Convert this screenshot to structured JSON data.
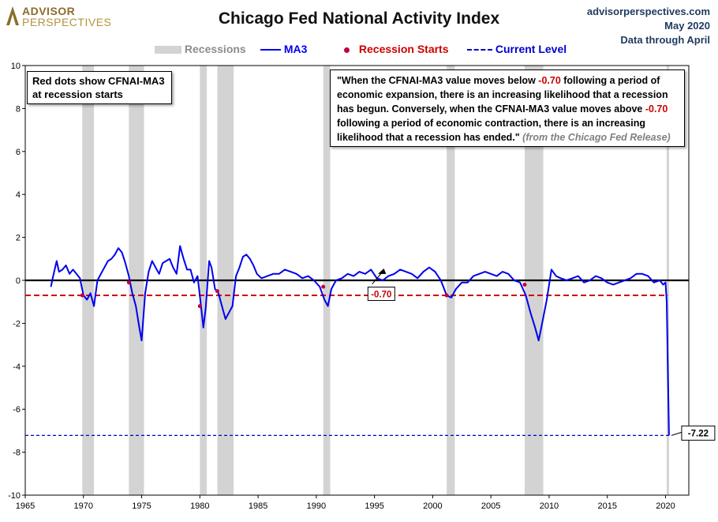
{
  "header": {
    "logo_line1": "ADVISOR",
    "logo_line2": "PERSPECTIVES",
    "title": "Chicago Fed National Activity Index",
    "source_site": "advisorperspectives.com",
    "source_date": "May 2020",
    "source_through": "Data through April"
  },
  "legend": {
    "recessions": "Recessions",
    "ma3": "MA3",
    "recession_starts": "Recession Starts",
    "current_level": "Current Level"
  },
  "notes": {
    "left_box": "Red dots show CFNAI-MA3 at recession starts",
    "quote_part1": "\"When the CFNAI-MA3 value moves below ",
    "quote_threshold1": "-0.70",
    "quote_part2": " following a period of economic expansion, there is an increasing likelihood that a recession has begun. Conversely, when the CFNAI-MA3 value moves above ",
    "quote_threshold2": "-0.70",
    "quote_part3": " following a period of economic contraction, there is an increasing likelihood that a recession has ended.\" ",
    "quote_cite": "(from the Chicago Fed Release)"
  },
  "colors": {
    "ma3": "#0000ee",
    "recession_band": "#d3d3d3",
    "threshold": "#cc0000",
    "current_level": "#0000cc",
    "zero_line": "#000000"
  },
  "chart_data": {
    "type": "line",
    "title": "Chicago Fed National Activity Index",
    "ylim": [
      -10,
      10
    ],
    "xlim": [
      1965,
      2022
    ],
    "y_ticks": [
      -10,
      -8,
      -6,
      -4,
      -2,
      0,
      2,
      4,
      6,
      8,
      10
    ],
    "x_ticks": [
      1965,
      1970,
      1975,
      1980,
      1985,
      1990,
      1995,
      2000,
      2005,
      2010,
      2015,
      2020
    ],
    "grid": "none",
    "legend_placement": "top-center",
    "recessions": [
      [
        1969.9,
        1970.9
      ],
      [
        1973.9,
        1975.2
      ],
      [
        1980.0,
        1980.6
      ],
      [
        1981.5,
        1982.9
      ],
      [
        1990.6,
        1991.2
      ],
      [
        2001.2,
        2001.9
      ],
      [
        2007.9,
        2009.5
      ],
      [
        2020.1,
        2020.3
      ]
    ],
    "threshold": -0.7,
    "threshold_label": "-0.70",
    "current_level": -7.22,
    "current_level_label": "-7.22",
    "series": [
      {
        "name": "MA3",
        "x": [
          1967.2,
          1967.4,
          1967.7,
          1967.9,
          1968.2,
          1968.5,
          1968.8,
          1969.1,
          1969.4,
          1969.7,
          1970.0,
          1970.3,
          1970.6,
          1970.9,
          1971.2,
          1971.5,
          1971.8,
          1972.1,
          1972.4,
          1972.7,
          1973.0,
          1973.3,
          1973.6,
          1973.9,
          1974.2,
          1974.5,
          1974.8,
          1975.0,
          1975.3,
          1975.6,
          1975.9,
          1976.2,
          1976.5,
          1976.8,
          1977.1,
          1977.4,
          1977.7,
          1978.0,
          1978.3,
          1978.6,
          1978.9,
          1979.2,
          1979.5,
          1979.8,
          1980.1,
          1980.3,
          1980.5,
          1980.8,
          1981.0,
          1981.3,
          1981.6,
          1981.9,
          1982.2,
          1982.5,
          1982.8,
          1983.1,
          1983.4,
          1983.7,
          1984.0,
          1984.3,
          1984.6,
          1984.9,
          1985.3,
          1985.8,
          1986.3,
          1986.8,
          1987.3,
          1987.8,
          1988.3,
          1988.8,
          1989.3,
          1989.8,
          1990.3,
          1990.7,
          1991.0,
          1991.3,
          1991.7,
          1992.2,
          1992.7,
          1993.2,
          1993.7,
          1994.2,
          1994.7,
          1995.2,
          1995.7,
          1996.2,
          1996.7,
          1997.2,
          1997.7,
          1998.2,
          1998.7,
          1999.2,
          1999.7,
          2000.2,
          2000.7,
          2001.2,
          2001.6,
          2002.0,
          2002.5,
          2003.0,
          2003.5,
          2004.0,
          2004.5,
          2005.0,
          2005.5,
          2006.0,
          2006.5,
          2007.0,
          2007.5,
          2008.0,
          2008.4,
          2008.8,
          2009.1,
          2009.4,
          2009.8,
          2010.2,
          2010.6,
          2011.0,
          2011.5,
          2012.0,
          2012.5,
          2013.0,
          2013.5,
          2014.0,
          2014.5,
          2015.0,
          2015.5,
          2016.0,
          2016.5,
          2017.0,
          2017.5,
          2018.0,
          2018.5,
          2019.0,
          2019.5,
          2019.8,
          2020.0,
          2020.1,
          2020.2,
          2020.3
        ],
        "values": [
          -0.3,
          0.2,
          0.9,
          0.4,
          0.5,
          0.7,
          0.3,
          0.5,
          0.3,
          0.1,
          -0.7,
          -0.9,
          -0.6,
          -1.2,
          0.0,
          0.3,
          0.6,
          0.9,
          1.0,
          1.2,
          1.5,
          1.3,
          0.8,
          0.2,
          -0.6,
          -1.2,
          -2.2,
          -2.8,
          -0.6,
          0.4,
          0.9,
          0.6,
          0.3,
          0.8,
          0.9,
          1.0,
          0.6,
          0.3,
          1.6,
          1.0,
          0.5,
          0.5,
          -0.1,
          0.2,
          -1.2,
          -2.2,
          -1.3,
          0.9,
          0.6,
          -0.4,
          -0.6,
          -1.2,
          -1.8,
          -1.5,
          -1.2,
          0.2,
          0.6,
          1.1,
          1.2,
          1.0,
          0.7,
          0.3,
          0.1,
          0.2,
          0.3,
          0.3,
          0.5,
          0.4,
          0.3,
          0.1,
          0.2,
          0.0,
          -0.3,
          -0.9,
          -1.2,
          -0.4,
          0.0,
          0.1,
          0.3,
          0.2,
          0.4,
          0.3,
          0.5,
          0.1,
          0.0,
          0.2,
          0.3,
          0.5,
          0.4,
          0.3,
          0.1,
          0.4,
          0.6,
          0.4,
          0.0,
          -0.7,
          -0.8,
          -0.4,
          -0.1,
          -0.1,
          0.2,
          0.3,
          0.4,
          0.3,
          0.2,
          0.4,
          0.3,
          0.0,
          -0.1,
          -0.7,
          -1.5,
          -2.2,
          -2.8,
          -2.0,
          -0.9,
          0.5,
          0.2,
          0.1,
          0.0,
          0.1,
          0.2,
          -0.1,
          0.0,
          0.2,
          0.1,
          -0.1,
          -0.2,
          -0.1,
          0.0,
          0.1,
          0.3,
          0.3,
          0.2,
          -0.1,
          0.0,
          -0.2,
          -0.1,
          -1.0,
          -4.0,
          -7.22
        ]
      }
    ],
    "recession_start_points": {
      "x": [
        1969.9,
        1973.9,
        1980.0,
        1981.5,
        1990.6,
        2001.2,
        2007.9
      ],
      "values": [
        -0.7,
        -0.1,
        -1.2,
        -0.5,
        -0.3,
        -0.7,
        -0.2
      ]
    }
  }
}
